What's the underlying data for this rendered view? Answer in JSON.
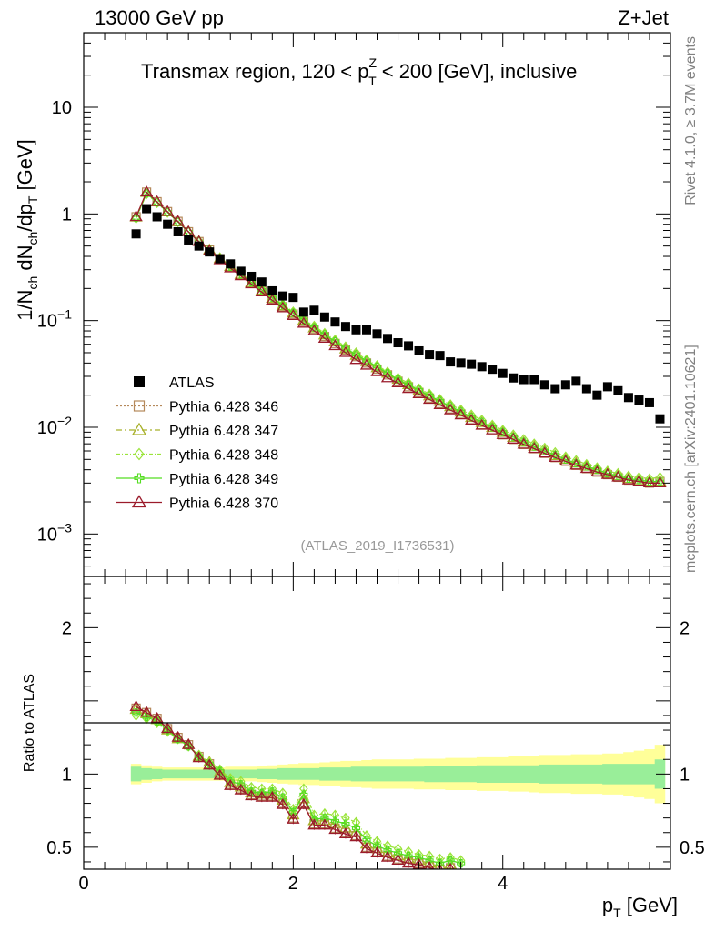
{
  "header": {
    "energy": "13000 GeV pp",
    "process": "Z+Jet"
  },
  "side_labels": {
    "rivet": "Rivet 4.1.0, ≥ 3.7M events",
    "mcplots": "mcplots.cern.ch [arXiv:2401.10621]"
  },
  "chart_data": {
    "type": "scatter",
    "title": "Transmax region, 120 < p_T^Z < 200 [GeV], inclusive",
    "title_parts": {
      "pre": "Transmax region, 120 < p",
      "sup": "Z",
      "sub": "T",
      "post": " < 200 [GeV], inclusive"
    },
    "analysis_id": "(ATLAS_2019_I1736531)",
    "xlabel": "p_T [GeV]",
    "xlabel_parts": {
      "main": "p",
      "sub": "T",
      "unit": " [GeV]"
    },
    "ylabel": "1/N_ch dN_ch/dp_T [GeV]",
    "ylabel_parts": {
      "a": "1/N",
      "a_sub": "ch",
      "b": " dN",
      "b_sub": "ch",
      "c": "/dp",
      "c_sub": "T",
      "d": " [GeV]"
    },
    "ratio_ylabel": "Ratio to ATLAS",
    "xlim": [
      0,
      5.6
    ],
    "ylim_main": [
      0.0004,
      50
    ],
    "ylim_ratio": [
      0.35,
      2.35
    ],
    "x_ticks": [
      "0",
      "2",
      "4"
    ],
    "y_ticks_main": [
      {
        "v": 10,
        "base": "10",
        "exp": ""
      },
      {
        "v": 1,
        "base": "1",
        "exp": ""
      },
      {
        "v": 0.1,
        "base": "10",
        "exp": "−1"
      },
      {
        "v": 0.01,
        "base": "10",
        "exp": "−2"
      },
      {
        "v": 0.001,
        "base": "10",
        "exp": "−3"
      }
    ],
    "y_ticks_ratio": [
      "2",
      "1",
      "0.5"
    ],
    "x": [
      0.5,
      0.6,
      0.7,
      0.8,
      0.9,
      1.0,
      1.1,
      1.2,
      1.3,
      1.4,
      1.5,
      1.6,
      1.7,
      1.8,
      1.9,
      2.0,
      2.1,
      2.2,
      2.3,
      2.4,
      2.5,
      2.6,
      2.7,
      2.8,
      2.9,
      3.0,
      3.1,
      3.2,
      3.3,
      3.4,
      3.5,
      3.6,
      3.7,
      3.8,
      3.9,
      4.0,
      4.1,
      4.2,
      4.3,
      4.4,
      4.5,
      4.6,
      4.7,
      4.8,
      4.9,
      5.0,
      5.1,
      5.2,
      5.3,
      5.4,
      5.5
    ],
    "series": [
      {
        "name": "ATLAS",
        "role": "data",
        "color": "#000000",
        "marker": "square",
        "values": [
          0.65,
          1.12,
          0.94,
          0.8,
          0.68,
          0.57,
          0.5,
          0.44,
          0.38,
          0.34,
          0.29,
          0.26,
          0.23,
          0.19,
          0.17,
          0.165,
          0.12,
          0.125,
          0.108,
          0.097,
          0.088,
          0.082,
          0.082,
          0.075,
          0.068,
          0.062,
          0.058,
          0.052,
          0.048,
          0.047,
          0.041,
          0.04,
          0.039,
          0.037,
          0.035,
          0.032,
          0.029,
          0.028,
          0.028,
          0.025,
          0.023,
          0.025,
          0.027,
          0.023,
          0.02,
          0.024,
          0.022,
          0.019,
          0.018,
          0.017,
          0.012
        ]
      },
      {
        "name": "Pythia 6.428 346",
        "color": "#b5895b",
        "marker": "open-square",
        "dash": "2,2",
        "values": [
          0.94,
          1.6,
          1.3,
          1.05,
          0.85,
          0.68,
          0.55,
          0.46,
          0.38,
          0.32,
          0.27,
          0.225,
          0.19,
          0.16,
          0.135,
          0.115,
          0.098,
          0.083,
          0.071,
          0.061,
          0.053,
          0.046,
          0.04,
          0.035,
          0.031,
          0.027,
          0.024,
          0.0212,
          0.0188,
          0.0167,
          0.0149,
          0.0133,
          0.0118,
          0.0106,
          0.0095,
          0.0085,
          0.0077,
          0.0069,
          0.0063,
          0.0057,
          0.0052,
          0.0048,
          0.0044,
          0.0041,
          0.0038,
          0.0036,
          0.0034,
          0.0032,
          0.0031,
          0.003,
          0.0031
        ]
      },
      {
        "name": "Pythia 6.428 347",
        "color": "#a8b02a",
        "marker": "open-triangle",
        "dash": "6,3,2,3",
        "values": [
          0.93,
          1.58,
          1.29,
          1.04,
          0.84,
          0.68,
          0.55,
          0.46,
          0.38,
          0.32,
          0.27,
          0.226,
          0.191,
          0.161,
          0.137,
          0.117,
          0.1,
          0.085,
          0.073,
          0.063,
          0.054,
          0.047,
          0.041,
          0.036,
          0.032,
          0.028,
          0.025,
          0.0221,
          0.0196,
          0.0174,
          0.0155,
          0.0138,
          0.0123,
          0.011,
          0.0099,
          0.0089,
          0.008,
          0.0072,
          0.0066,
          0.006,
          0.0054,
          0.005,
          0.0046,
          0.0043,
          0.004,
          0.0037,
          0.0035,
          0.0033,
          0.0032,
          0.0031,
          0.0031
        ]
      },
      {
        "name": "Pythia 6.428 348",
        "color": "#9be43b",
        "marker": "open-diamond",
        "dash": "4,2,1,2",
        "values": [
          0.91,
          1.54,
          1.27,
          1.03,
          0.84,
          0.68,
          0.56,
          0.46,
          0.39,
          0.33,
          0.275,
          0.232,
          0.197,
          0.167,
          0.142,
          0.121,
          0.104,
          0.089,
          0.076,
          0.066,
          0.057,
          0.05,
          0.043,
          0.038,
          0.033,
          0.029,
          0.026,
          0.023,
          0.0205,
          0.0183,
          0.0163,
          0.0146,
          0.0131,
          0.0117,
          0.0105,
          0.0094,
          0.0085,
          0.0077,
          0.007,
          0.0064,
          0.0058,
          0.0053,
          0.0049,
          0.0045,
          0.0042,
          0.0039,
          0.0037,
          0.0035,
          0.0034,
          0.0033,
          0.0034
        ]
      },
      {
        "name": "Pythia 6.428 349",
        "color": "#55dd22",
        "marker": "open-cross",
        "dash": "",
        "values": [
          0.92,
          1.56,
          1.28,
          1.04,
          0.84,
          0.68,
          0.55,
          0.46,
          0.38,
          0.32,
          0.272,
          0.229,
          0.194,
          0.164,
          0.139,
          0.118,
          0.101,
          0.086,
          0.074,
          0.064,
          0.055,
          0.048,
          0.042,
          0.037,
          0.032,
          0.028,
          0.025,
          0.0223,
          0.0198,
          0.0176,
          0.0157,
          0.014,
          0.0125,
          0.0112,
          0.01,
          0.009,
          0.0081,
          0.0073,
          0.0066,
          0.006,
          0.0055,
          0.005,
          0.0046,
          0.0043,
          0.004,
          0.0037,
          0.0035,
          0.0033,
          0.0032,
          0.0031,
          0.0031
        ]
      },
      {
        "name": "Pythia 6.428 370",
        "color": "#9b1b2b",
        "marker": "open-triangle",
        "dash": "",
        "values": [
          0.94,
          1.6,
          1.3,
          1.05,
          0.85,
          0.68,
          0.55,
          0.45,
          0.37,
          0.31,
          0.262,
          0.22,
          0.185,
          0.155,
          0.131,
          0.111,
          0.094,
          0.08,
          0.068,
          0.058,
          0.05,
          0.043,
          0.038,
          0.033,
          0.029,
          0.026,
          0.023,
          0.0205,
          0.0182,
          0.0162,
          0.0145,
          0.013,
          0.0116,
          0.0104,
          0.0094,
          0.0085,
          0.0077,
          0.0069,
          0.0063,
          0.0057,
          0.0052,
          0.0048,
          0.0044,
          0.0041,
          0.0038,
          0.0036,
          0.0034,
          0.0032,
          0.0031,
          0.003,
          0.003
        ]
      }
    ],
    "ratio_series": [
      {
        "name": "Pythia 6.428 346",
        "values": [
          1.45,
          1.42,
          1.38,
          1.31,
          1.25,
          1.2,
          1.12,
          1.07,
          1.0,
          0.93,
          0.9,
          0.86,
          0.85,
          0.85,
          0.8,
          0.7,
          0.8,
          0.66,
          0.66,
          0.63,
          0.6,
          0.58,
          0.5,
          0.47,
          0.44,
          0.42,
          0.4,
          0.39,
          0.37,
          0.35,
          0.36
        ]
      },
      {
        "name": "Pythia 6.428 347",
        "values": [
          1.44,
          1.41,
          1.37,
          1.3,
          1.24,
          1.2,
          1.12,
          1.08,
          1.01,
          0.94,
          0.91,
          0.87,
          0.86,
          0.86,
          0.82,
          0.72,
          0.83,
          0.68,
          0.68,
          0.66,
          0.63,
          0.6,
          0.52,
          0.49,
          0.46,
          0.44,
          0.42,
          0.41,
          0.39,
          0.37,
          0.38
        ]
      },
      {
        "name": "Pythia 6.428 348",
        "values": [
          1.4,
          1.38,
          1.35,
          1.29,
          1.24,
          1.19,
          1.13,
          1.08,
          1.03,
          0.97,
          0.95,
          0.91,
          0.9,
          0.9,
          0.87,
          0.76,
          0.9,
          0.72,
          0.73,
          0.72,
          0.7,
          0.67,
          0.58,
          0.54,
          0.51,
          0.49,
          0.47,
          0.45,
          0.44,
          0.42,
          0.43,
          0.41
        ]
      },
      {
        "name": "Pythia 6.428 349",
        "values": [
          1.42,
          1.39,
          1.36,
          1.3,
          1.24,
          1.19,
          1.12,
          1.07,
          1.02,
          0.95,
          0.93,
          0.88,
          0.87,
          0.88,
          0.84,
          0.74,
          0.86,
          0.69,
          0.7,
          0.68,
          0.66,
          0.63,
          0.55,
          0.51,
          0.48,
          0.46,
          0.44,
          0.43,
          0.41,
          0.39,
          0.41,
          0.39
        ]
      },
      {
        "name": "Pythia 6.428 370",
        "values": [
          1.46,
          1.42,
          1.38,
          1.31,
          1.25,
          1.2,
          1.11,
          1.06,
          0.99,
          0.92,
          0.89,
          0.85,
          0.84,
          0.84,
          0.79,
          0.69,
          0.79,
          0.65,
          0.65,
          0.62,
          0.59,
          0.57,
          0.49,
          0.46,
          0.43,
          0.41,
          0.39,
          0.38,
          0.36,
          0.34,
          0.35
        ]
      }
    ],
    "ratio_band": {
      "green_halfwidth": [
        0.05,
        0.04,
        0.035,
        0.03,
        0.03,
        0.03,
        0.03,
        0.03,
        0.03,
        0.03,
        0.03,
        0.03,
        0.035,
        0.035,
        0.04,
        0.04,
        0.04,
        0.04,
        0.045,
        0.045,
        0.045,
        0.05,
        0.05,
        0.05,
        0.05,
        0.05,
        0.05,
        0.05,
        0.055,
        0.055,
        0.055,
        0.055,
        0.055,
        0.06,
        0.06,
        0.06,
        0.06,
        0.06,
        0.06,
        0.065,
        0.065,
        0.065,
        0.065,
        0.065,
        0.065,
        0.07,
        0.07,
        0.07,
        0.07,
        0.07,
        0.1
      ],
      "yellow_halfwidth": [
        0.07,
        0.06,
        0.05,
        0.045,
        0.045,
        0.045,
        0.045,
        0.045,
        0.045,
        0.05,
        0.05,
        0.05,
        0.055,
        0.06,
        0.065,
        0.07,
        0.075,
        0.075,
        0.08,
        0.085,
        0.09,
        0.09,
        0.095,
        0.1,
        0.1,
        0.1,
        0.1,
        0.105,
        0.105,
        0.105,
        0.11,
        0.11,
        0.11,
        0.115,
        0.115,
        0.115,
        0.12,
        0.12,
        0.125,
        0.13,
        0.13,
        0.13,
        0.135,
        0.135,
        0.135,
        0.14,
        0.14,
        0.15,
        0.16,
        0.17,
        0.2
      ],
      "green_color": "#99ee99",
      "yellow_color": "#ffff99"
    },
    "legend_position": "middle-left"
  }
}
